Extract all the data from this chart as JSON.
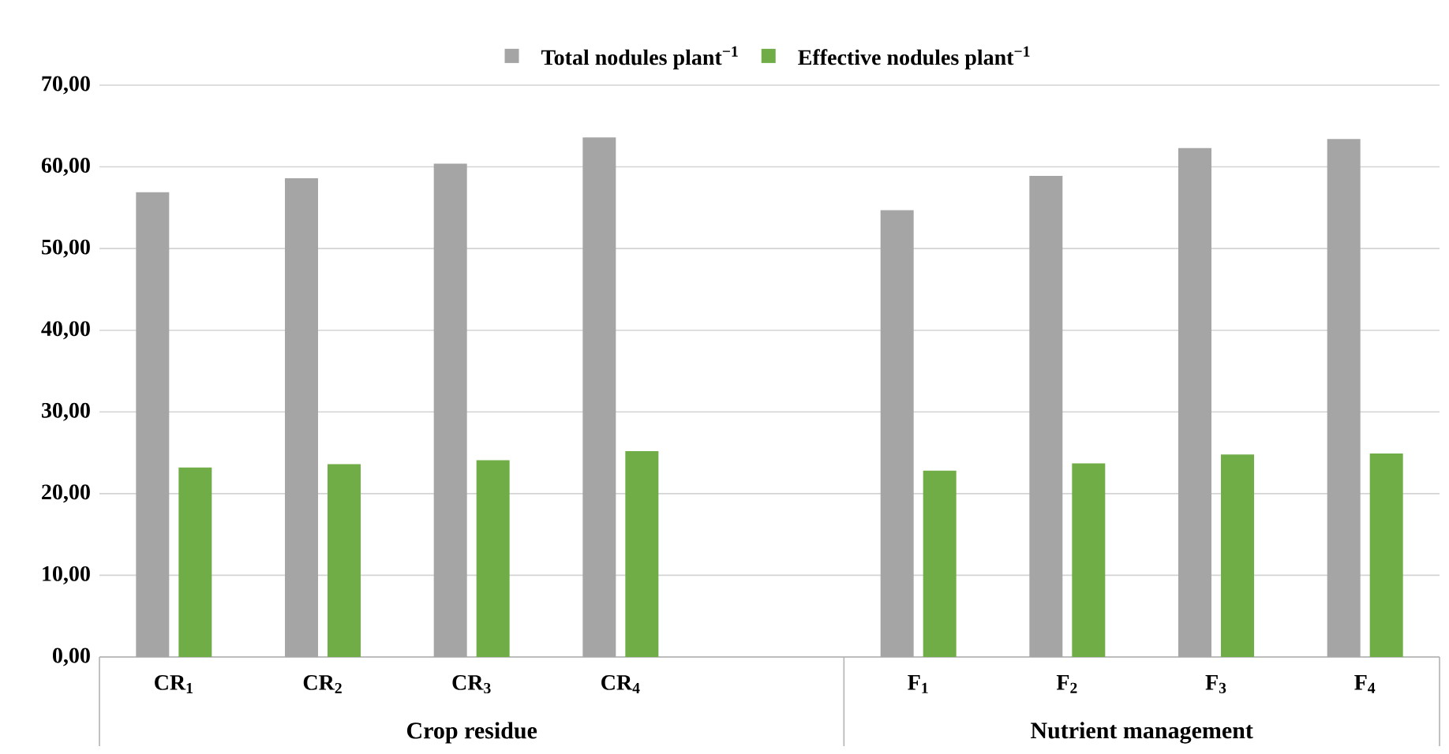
{
  "chart_data": {
    "type": "bar",
    "categories": [
      "CR$_{1}$",
      "CR$_{2}$",
      "CR$_{3}$",
      "CR$_{4}$",
      null,
      "F$_{1}$",
      "F$_{2}$",
      "F$_{3}$",
      "F$_{4}$"
    ],
    "series": [
      {
        "name": "Total nodules plant$^{−1}$",
        "color": "#a5a5a5",
        "values": [
          56.9,
          58.6,
          60.4,
          63.6,
          null,
          54.7,
          58.9,
          62.3,
          63.4
        ]
      },
      {
        "name": "Effective nodules plant$^{−1}$",
        "color": "#70ad47",
        "values": [
          23.2,
          23.6,
          24.1,
          25.2,
          null,
          22.8,
          23.7,
          24.8,
          24.9
        ]
      }
    ],
    "ylim": [
      0,
      70
    ],
    "yticks": [
      {
        "value": 0,
        "label": "0,00"
      },
      {
        "value": 10,
        "label": "10,00"
      },
      {
        "value": 20,
        "label": "20,00"
      },
      {
        "value": 30,
        "label": "30,00"
      },
      {
        "value": 40,
        "label": "40,00"
      },
      {
        "value": 50,
        "label": "50,00"
      },
      {
        "value": 60,
        "label": "60,00"
      },
      {
        "value": 70,
        "label": "70,00"
      }
    ],
    "grid": "y",
    "legend": "top",
    "annotations": [
      "Crop residue",
      "Nutrient management"
    ]
  }
}
